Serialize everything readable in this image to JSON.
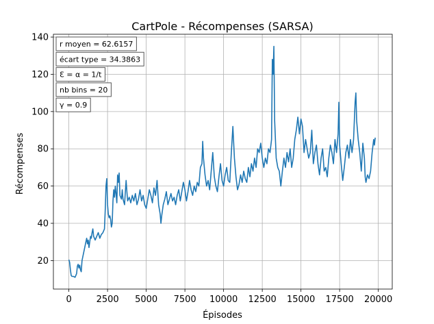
{
  "chart_data": {
    "type": "line",
    "title": "CartPole - Récompenses (SARSA)",
    "xlabel": "Épisodes",
    "ylabel": "Récompenses",
    "xlim": [
      -1000,
      20900
    ],
    "ylim": [
      4.7,
      141.5
    ],
    "xticks": [
      0,
      2500,
      5000,
      7500,
      10000,
      12500,
      15000,
      17500,
      20000
    ],
    "xtick_labels": [
      "0",
      "2500",
      "5000",
      "7500",
      "10000",
      "12500",
      "15000",
      "17500",
      "20000"
    ],
    "yticks": [
      20,
      40,
      60,
      80,
      100,
      120,
      140
    ],
    "ytick_labels": [
      "20",
      "40",
      "60",
      "80",
      "100",
      "120",
      "140"
    ],
    "grid": true,
    "line_color": "#1f77b4",
    "annotations": [
      "r moyen = 62.6157",
      "écart type = 34.3863",
      "Ɛ = α = 1/t",
      "nb bins = 20",
      "γ = 0.9"
    ],
    "series": [
      {
        "name": "Récompenses",
        "points": [
          [
            0,
            20.5
          ],
          [
            50,
            19
          ],
          [
            100,
            15
          ],
          [
            150,
            12
          ],
          [
            200,
            11.5
          ],
          [
            300,
            11.5
          ],
          [
            400,
            11
          ],
          [
            450,
            12
          ],
          [
            500,
            13
          ],
          [
            550,
            17
          ],
          [
            600,
            18
          ],
          [
            650,
            16
          ],
          [
            700,
            17.5
          ],
          [
            750,
            15
          ],
          [
            800,
            14
          ],
          [
            850,
            20
          ],
          [
            900,
            22
          ],
          [
            1000,
            26
          ],
          [
            1050,
            28
          ],
          [
            1100,
            30
          ],
          [
            1150,
            32
          ],
          [
            1200,
            29
          ],
          [
            1250,
            31
          ],
          [
            1300,
            27
          ],
          [
            1350,
            30
          ],
          [
            1400,
            33
          ],
          [
            1450,
            32
          ],
          [
            1500,
            35
          ],
          [
            1550,
            37
          ],
          [
            1600,
            33
          ],
          [
            1700,
            31
          ],
          [
            1800,
            33
          ],
          [
            1900,
            35
          ],
          [
            2000,
            32
          ],
          [
            2100,
            34
          ],
          [
            2200,
            35
          ],
          [
            2300,
            37
          ],
          [
            2350,
            47
          ],
          [
            2400,
            60
          ],
          [
            2450,
            64
          ],
          [
            2500,
            50
          ],
          [
            2550,
            45
          ],
          [
            2600,
            43
          ],
          [
            2650,
            44
          ],
          [
            2700,
            42
          ],
          [
            2750,
            38
          ],
          [
            2800,
            40
          ],
          [
            2850,
            52
          ],
          [
            2900,
            58
          ],
          [
            2950,
            54
          ],
          [
            3000,
            60
          ],
          [
            3050,
            56
          ],
          [
            3100,
            51
          ],
          [
            3150,
            66
          ],
          [
            3200,
            62
          ],
          [
            3250,
            67
          ],
          [
            3300,
            55
          ],
          [
            3400,
            53
          ],
          [
            3450,
            58
          ],
          [
            3500,
            53
          ],
          [
            3600,
            50
          ],
          [
            3650,
            57
          ],
          [
            3700,
            63
          ],
          [
            3750,
            57
          ],
          [
            3800,
            52
          ],
          [
            3900,
            54
          ],
          [
            4000,
            51
          ],
          [
            4100,
            55
          ],
          [
            4200,
            52
          ],
          [
            4300,
            56
          ],
          [
            4400,
            50
          ],
          [
            4500,
            53
          ],
          [
            4600,
            58
          ],
          [
            4700,
            52
          ],
          [
            4800,
            55
          ],
          [
            4900,
            50
          ],
          [
            5000,
            48
          ],
          [
            5100,
            53
          ],
          [
            5200,
            58
          ],
          [
            5300,
            55
          ],
          [
            5400,
            51
          ],
          [
            5500,
            59
          ],
          [
            5600,
            55
          ],
          [
            5700,
            63
          ],
          [
            5800,
            50
          ],
          [
            5900,
            45
          ],
          [
            5950,
            40
          ],
          [
            6000,
            44
          ],
          [
            6100,
            50
          ],
          [
            6200,
            53
          ],
          [
            6300,
            57
          ],
          [
            6400,
            50
          ],
          [
            6500,
            53
          ],
          [
            6600,
            56
          ],
          [
            6700,
            52
          ],
          [
            6800,
            54
          ],
          [
            6900,
            50
          ],
          [
            7000,
            55
          ],
          [
            7100,
            58
          ],
          [
            7200,
            52
          ],
          [
            7300,
            57
          ],
          [
            7400,
            62
          ],
          [
            7500,
            58
          ],
          [
            7600,
            52
          ],
          [
            7700,
            57
          ],
          [
            7800,
            63
          ],
          [
            7900,
            58
          ],
          [
            8000,
            55
          ],
          [
            8100,
            60
          ],
          [
            8200,
            57
          ],
          [
            8300,
            62
          ],
          [
            8400,
            60
          ],
          [
            8500,
            70
          ],
          [
            8600,
            72
          ],
          [
            8650,
            84
          ],
          [
            8700,
            75
          ],
          [
            8800,
            66
          ],
          [
            8900,
            60
          ],
          [
            9000,
            63
          ],
          [
            9100,
            58
          ],
          [
            9200,
            68
          ],
          [
            9300,
            78
          ],
          [
            9400,
            65
          ],
          [
            9500,
            60
          ],
          [
            9600,
            57
          ],
          [
            9700,
            65
          ],
          [
            9800,
            72
          ],
          [
            9900,
            63
          ],
          [
            10000,
            60
          ],
          [
            10100,
            66
          ],
          [
            10200,
            70
          ],
          [
            10300,
            63
          ],
          [
            10400,
            62
          ],
          [
            10500,
            78
          ],
          [
            10600,
            92
          ],
          [
            10700,
            75
          ],
          [
            10800,
            65
          ],
          [
            10900,
            58
          ],
          [
            11000,
            61
          ],
          [
            11100,
            66
          ],
          [
            11200,
            62
          ],
          [
            11300,
            68
          ],
          [
            11400,
            64
          ],
          [
            11500,
            62
          ],
          [
            11600,
            70
          ],
          [
            11700,
            65
          ],
          [
            11800,
            72
          ],
          [
            11900,
            68
          ],
          [
            12000,
            75
          ],
          [
            12100,
            70
          ],
          [
            12200,
            80
          ],
          [
            12300,
            78
          ],
          [
            12400,
            83
          ],
          [
            12500,
            75
          ],
          [
            12600,
            70
          ],
          [
            12700,
            75
          ],
          [
            12800,
            72
          ],
          [
            12900,
            80
          ],
          [
            13000,
            78
          ],
          [
            13100,
            85
          ],
          [
            13150,
            128
          ],
          [
            13200,
            120
          ],
          [
            13250,
            135
          ],
          [
            13300,
            95
          ],
          [
            13400,
            75
          ],
          [
            13500,
            70
          ],
          [
            13600,
            68
          ],
          [
            13700,
            60
          ],
          [
            13800,
            68
          ],
          [
            13900,
            75
          ],
          [
            14000,
            70
          ],
          [
            14100,
            78
          ],
          [
            14200,
            73
          ],
          [
            14300,
            80
          ],
          [
            14400,
            70
          ],
          [
            14500,
            75
          ],
          [
            14600,
            85
          ],
          [
            14700,
            90
          ],
          [
            14800,
            97
          ],
          [
            14900,
            88
          ],
          [
            15000,
            96
          ],
          [
            15100,
            92
          ],
          [
            15200,
            78
          ],
          [
            15300,
            85
          ],
          [
            15400,
            80
          ],
          [
            15500,
            75
          ],
          [
            15600,
            78
          ],
          [
            15700,
            90
          ],
          [
            15800,
            72
          ],
          [
            15900,
            78
          ],
          [
            16000,
            82
          ],
          [
            16100,
            72
          ],
          [
            16200,
            66
          ],
          [
            16300,
            75
          ],
          [
            16400,
            80
          ],
          [
            16500,
            68
          ],
          [
            16600,
            70
          ],
          [
            16700,
            65
          ],
          [
            16800,
            75
          ],
          [
            16900,
            82
          ],
          [
            17000,
            78
          ],
          [
            17100,
            72
          ],
          [
            17200,
            85
          ],
          [
            17300,
            78
          ],
          [
            17400,
            88
          ],
          [
            17450,
            105
          ],
          [
            17500,
            82
          ],
          [
            17600,
            72
          ],
          [
            17700,
            63
          ],
          [
            17800,
            70
          ],
          [
            17900,
            78
          ],
          [
            18000,
            82
          ],
          [
            18100,
            75
          ],
          [
            18200,
            85
          ],
          [
            18300,
            78
          ],
          [
            18400,
            85
          ],
          [
            18450,
            95
          ],
          [
            18500,
            105
          ],
          [
            18550,
            110
          ],
          [
            18600,
            95
          ],
          [
            18700,
            85
          ],
          [
            18800,
            78
          ],
          [
            18900,
            68
          ],
          [
            19000,
            83
          ],
          [
            19100,
            75
          ],
          [
            19150,
            65
          ],
          [
            19200,
            62
          ],
          [
            19300,
            66
          ],
          [
            19400,
            64
          ],
          [
            19500,
            68
          ],
          [
            19600,
            78
          ],
          [
            19700,
            85
          ],
          [
            19750,
            82
          ],
          [
            19800,
            86
          ]
        ]
      }
    ]
  }
}
